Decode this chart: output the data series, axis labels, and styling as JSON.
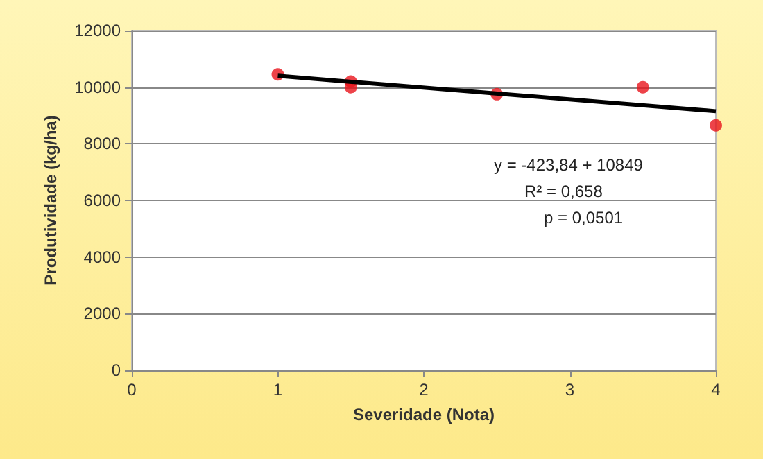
{
  "chart_data": {
    "type": "scatter",
    "xlabel": "Severidade (Nota)",
    "ylabel": "Produtividade (kg/ha)",
    "xlim": [
      0,
      4
    ],
    "xticks": [
      0,
      1,
      2,
      3,
      4
    ],
    "ylim": [
      0,
      12000
    ],
    "yticks": [
      0,
      2000,
      4000,
      6000,
      8000,
      10000,
      12000
    ],
    "grid": "y",
    "marker": "circle",
    "series": [
      {
        "color": "#e8141c",
        "x": [
          1,
          1.5,
          1.5,
          2.5,
          3.5,
          4
        ],
        "values": [
          10450,
          10200,
          10000,
          9750,
          10000,
          8650
        ]
      },
      {
        "type": "line",
        "color": "#000000",
        "x": [
          1,
          4
        ],
        "values": [
          10400,
          9150
        ],
        "marker": "none"
      }
    ],
    "annotations": [
      "y = -423,84 + 10849",
      "R² = 0,658",
      "p = 0,0501"
    ]
  }
}
